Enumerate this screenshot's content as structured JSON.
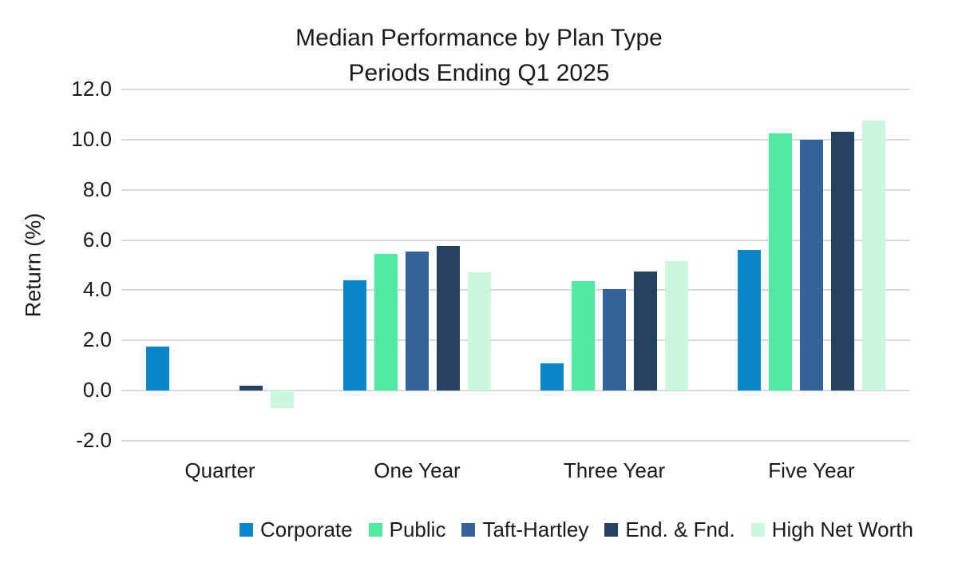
{
  "chart_data": {
    "type": "bar",
    "title_line1": "Median Performance by Plan Type",
    "title_line2": "Periods Ending Q1 2025",
    "ylabel": "Return (%)",
    "ylim": [
      -2.0,
      12.0
    ],
    "ytick_step": 2.0,
    "ytick_labels": [
      "12.0",
      "10.0",
      "8.0",
      "6.0",
      "4.0",
      "2.0",
      "0.0",
      "-2.0"
    ],
    "categories": [
      "Quarter",
      "One Year",
      "Three Year",
      "Five Year"
    ],
    "series": [
      {
        "name": "Corporate",
        "color": "#0A86C8",
        "values": [
          1.75,
          4.4,
          1.1,
          5.6
        ]
      },
      {
        "name": "Public",
        "color": "#50EBA0",
        "values": [
          0.0,
          5.45,
          4.35,
          10.25
        ]
      },
      {
        "name": "Taft-Hartley",
        "color": "#34639B",
        "values": [
          0.0,
          5.55,
          4.05,
          10.0
        ]
      },
      {
        "name": "End. & Fnd.",
        "color": "#26425F",
        "values": [
          0.2,
          5.75,
          4.75,
          10.3
        ]
      },
      {
        "name": "High Net Worth",
        "color": "#CAF8DE",
        "values": [
          -0.7,
          4.7,
          5.15,
          10.75
        ]
      }
    ],
    "grid": true,
    "gridline_color": "#D9D9D9",
    "legend_position": "bottom"
  }
}
